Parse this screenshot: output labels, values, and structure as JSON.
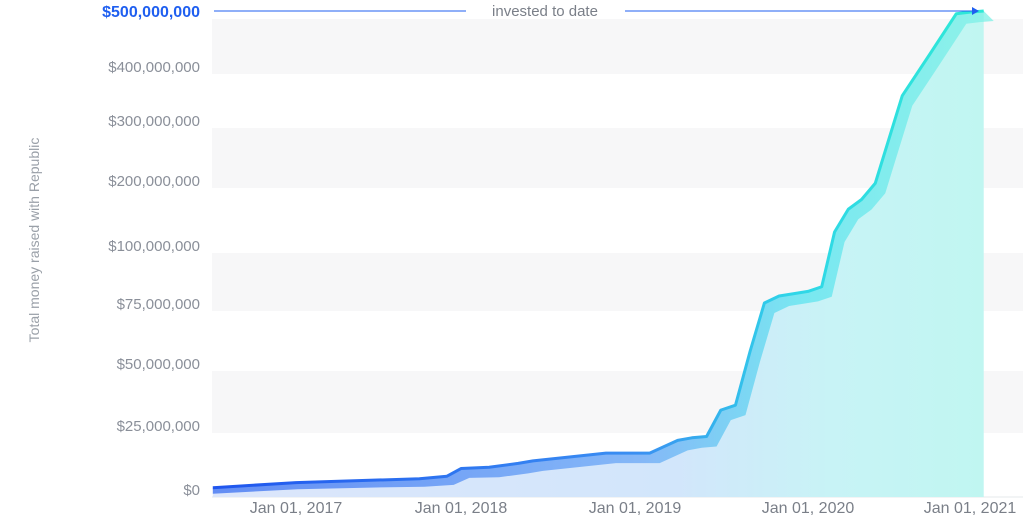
{
  "chart_data": {
    "type": "area",
    "ylabel": "Total money raised with Republic",
    "xlabel": "",
    "x_ticks": [
      "Jan 01, 2017",
      "Jan 01, 2018",
      "Jan 01, 2019",
      "Jan 01, 2020",
      "Jan 01, 2021"
    ],
    "y_ticks": [
      "$0",
      "$25,000,000",
      "$50,000,000",
      "$75,000,000",
      "$100,000,000",
      "$200,000,000",
      "$300,000,000",
      "$400,000,000",
      "$500,000,000"
    ],
    "y_tick_values": [
      0,
      25000000,
      50000000,
      75000000,
      100000000,
      200000000,
      300000000,
      400000000,
      500000000
    ],
    "y_scale": "piecewise (uneven spacing between tick labels)",
    "highlight_tick": "$500,000,000",
    "annotation": "invested to date",
    "grid": "alternating horizontal bands",
    "series": [
      {
        "x": [
          "2016-07-01",
          "2017-01-01",
          "2017-07-01",
          "2017-10-01",
          "2017-12-01",
          "2018-01-01",
          "2018-03-01",
          "2018-05-01",
          "2018-06-01",
          "2018-11-01",
          "2019-01-01",
          "2019-02-01",
          "2019-04-01",
          "2019-05-01",
          "2019-06-01",
          "2019-07-01",
          "2019-08-01",
          "2019-09-01",
          "2019-10-01",
          "2019-11-01",
          "2019-12-01",
          "2020-01-01",
          "2020-02-01",
          "2020-03-01",
          "2020-04-01",
          "2020-05-01",
          "2020-06-01",
          "2020-08-01",
          "2020-10-01",
          "2020-12-01",
          "2021-01-01",
          "2021-02-01"
        ],
        "values": [
          500000,
          2500000,
          3500000,
          4000000,
          5000000,
          8000000,
          8500000,
          10000000,
          11000000,
          14000000,
          14000000,
          14000000,
          19000000,
          20000000,
          20500000,
          31000000,
          33000000,
          55000000,
          75000000,
          78000000,
          79000000,
          80000000,
          82000000,
          120000000,
          155000000,
          170000000,
          195000000,
          345000000,
          420000000,
          495000000,
          498000000,
          500000000
        ]
      }
    ],
    "colors": {
      "line_start": "#1f5ff0",
      "line_end": "#2ee6d8",
      "highlight": "#1f5ff0",
      "band": "#f7f7f8",
      "tick_text": "#8a8f99"
    }
  }
}
